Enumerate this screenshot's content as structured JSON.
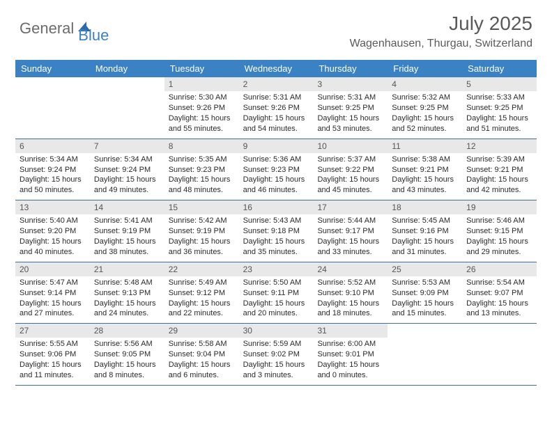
{
  "brand": {
    "text1": "General",
    "text2": "Blue"
  },
  "title": "July 2025",
  "location": "Wagenhausen, Thurgau, Switzerland",
  "colors": {
    "header_bar": "#3b82c4",
    "weekday_text": "#ffffff",
    "daynum_bg": "#e8e8e8",
    "rule": "#3b6fa0",
    "title_text": "#5a5a5a",
    "logo_gray": "#6b6b6b",
    "logo_blue": "#3b82c4"
  },
  "weekdays": [
    "Sunday",
    "Monday",
    "Tuesday",
    "Wednesday",
    "Thursday",
    "Friday",
    "Saturday"
  ],
  "weeks": [
    [
      null,
      null,
      {
        "n": "1",
        "sr": "Sunrise: 5:30 AM",
        "ss": "Sunset: 9:26 PM",
        "dl": "Daylight: 15 hours and 55 minutes."
      },
      {
        "n": "2",
        "sr": "Sunrise: 5:31 AM",
        "ss": "Sunset: 9:26 PM",
        "dl": "Daylight: 15 hours and 54 minutes."
      },
      {
        "n": "3",
        "sr": "Sunrise: 5:31 AM",
        "ss": "Sunset: 9:25 PM",
        "dl": "Daylight: 15 hours and 53 minutes."
      },
      {
        "n": "4",
        "sr": "Sunrise: 5:32 AM",
        "ss": "Sunset: 9:25 PM",
        "dl": "Daylight: 15 hours and 52 minutes."
      },
      {
        "n": "5",
        "sr": "Sunrise: 5:33 AM",
        "ss": "Sunset: 9:25 PM",
        "dl": "Daylight: 15 hours and 51 minutes."
      }
    ],
    [
      {
        "n": "6",
        "sr": "Sunrise: 5:34 AM",
        "ss": "Sunset: 9:24 PM",
        "dl": "Daylight: 15 hours and 50 minutes."
      },
      {
        "n": "7",
        "sr": "Sunrise: 5:34 AM",
        "ss": "Sunset: 9:24 PM",
        "dl": "Daylight: 15 hours and 49 minutes."
      },
      {
        "n": "8",
        "sr": "Sunrise: 5:35 AM",
        "ss": "Sunset: 9:23 PM",
        "dl": "Daylight: 15 hours and 48 minutes."
      },
      {
        "n": "9",
        "sr": "Sunrise: 5:36 AM",
        "ss": "Sunset: 9:23 PM",
        "dl": "Daylight: 15 hours and 46 minutes."
      },
      {
        "n": "10",
        "sr": "Sunrise: 5:37 AM",
        "ss": "Sunset: 9:22 PM",
        "dl": "Daylight: 15 hours and 45 minutes."
      },
      {
        "n": "11",
        "sr": "Sunrise: 5:38 AM",
        "ss": "Sunset: 9:21 PM",
        "dl": "Daylight: 15 hours and 43 minutes."
      },
      {
        "n": "12",
        "sr": "Sunrise: 5:39 AM",
        "ss": "Sunset: 9:21 PM",
        "dl": "Daylight: 15 hours and 42 minutes."
      }
    ],
    [
      {
        "n": "13",
        "sr": "Sunrise: 5:40 AM",
        "ss": "Sunset: 9:20 PM",
        "dl": "Daylight: 15 hours and 40 minutes."
      },
      {
        "n": "14",
        "sr": "Sunrise: 5:41 AM",
        "ss": "Sunset: 9:19 PM",
        "dl": "Daylight: 15 hours and 38 minutes."
      },
      {
        "n": "15",
        "sr": "Sunrise: 5:42 AM",
        "ss": "Sunset: 9:19 PM",
        "dl": "Daylight: 15 hours and 36 minutes."
      },
      {
        "n": "16",
        "sr": "Sunrise: 5:43 AM",
        "ss": "Sunset: 9:18 PM",
        "dl": "Daylight: 15 hours and 35 minutes."
      },
      {
        "n": "17",
        "sr": "Sunrise: 5:44 AM",
        "ss": "Sunset: 9:17 PM",
        "dl": "Daylight: 15 hours and 33 minutes."
      },
      {
        "n": "18",
        "sr": "Sunrise: 5:45 AM",
        "ss": "Sunset: 9:16 PM",
        "dl": "Daylight: 15 hours and 31 minutes."
      },
      {
        "n": "19",
        "sr": "Sunrise: 5:46 AM",
        "ss": "Sunset: 9:15 PM",
        "dl": "Daylight: 15 hours and 29 minutes."
      }
    ],
    [
      {
        "n": "20",
        "sr": "Sunrise: 5:47 AM",
        "ss": "Sunset: 9:14 PM",
        "dl": "Daylight: 15 hours and 27 minutes."
      },
      {
        "n": "21",
        "sr": "Sunrise: 5:48 AM",
        "ss": "Sunset: 9:13 PM",
        "dl": "Daylight: 15 hours and 24 minutes."
      },
      {
        "n": "22",
        "sr": "Sunrise: 5:49 AM",
        "ss": "Sunset: 9:12 PM",
        "dl": "Daylight: 15 hours and 22 minutes."
      },
      {
        "n": "23",
        "sr": "Sunrise: 5:50 AM",
        "ss": "Sunset: 9:11 PM",
        "dl": "Daylight: 15 hours and 20 minutes."
      },
      {
        "n": "24",
        "sr": "Sunrise: 5:52 AM",
        "ss": "Sunset: 9:10 PM",
        "dl": "Daylight: 15 hours and 18 minutes."
      },
      {
        "n": "25",
        "sr": "Sunrise: 5:53 AM",
        "ss": "Sunset: 9:09 PM",
        "dl": "Daylight: 15 hours and 15 minutes."
      },
      {
        "n": "26",
        "sr": "Sunrise: 5:54 AM",
        "ss": "Sunset: 9:07 PM",
        "dl": "Daylight: 15 hours and 13 minutes."
      }
    ],
    [
      {
        "n": "27",
        "sr": "Sunrise: 5:55 AM",
        "ss": "Sunset: 9:06 PM",
        "dl": "Daylight: 15 hours and 11 minutes."
      },
      {
        "n": "28",
        "sr": "Sunrise: 5:56 AM",
        "ss": "Sunset: 9:05 PM",
        "dl": "Daylight: 15 hours and 8 minutes."
      },
      {
        "n": "29",
        "sr": "Sunrise: 5:58 AM",
        "ss": "Sunset: 9:04 PM",
        "dl": "Daylight: 15 hours and 6 minutes."
      },
      {
        "n": "30",
        "sr": "Sunrise: 5:59 AM",
        "ss": "Sunset: 9:02 PM",
        "dl": "Daylight: 15 hours and 3 minutes."
      },
      {
        "n": "31",
        "sr": "Sunrise: 6:00 AM",
        "ss": "Sunset: 9:01 PM",
        "dl": "Daylight: 15 hours and 0 minutes."
      },
      null,
      null
    ]
  ]
}
